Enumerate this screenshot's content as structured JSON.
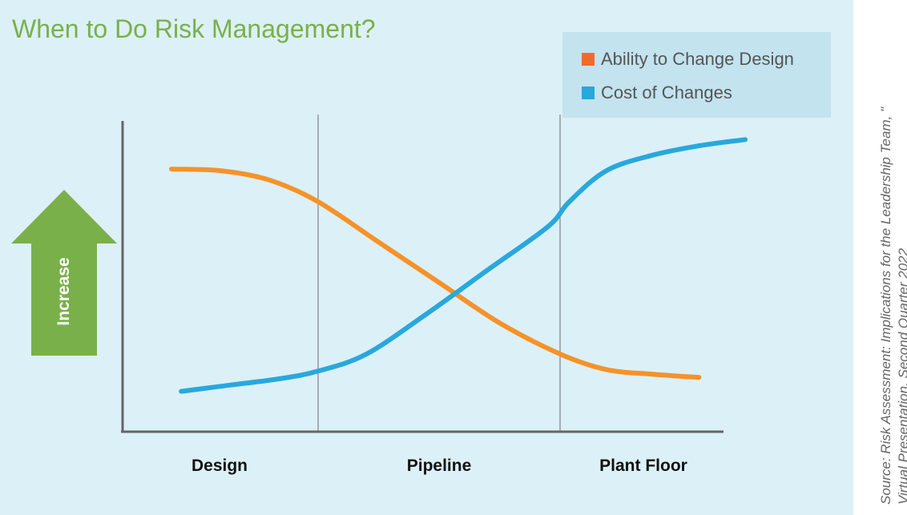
{
  "colors": {
    "background": "#dcf0f8",
    "legend_background": "#c3e3ef",
    "title": "#7ab04a",
    "arrow": "#7ab04a",
    "axis": "#666666",
    "ability": "#f5922a",
    "cost": "#28a8dc",
    "legend_swatch_ability": "#f26a2a",
    "legend_swatch_cost": "#28a8dc"
  },
  "title": "When to Do Risk Management?",
  "source": "Source:  Risk Assessment: Implications for the Leadership Team, \" Virtual Presentation, Second Quarter 2022",
  "arrow": {
    "label": "Increase",
    "icon": "up-arrow-icon"
  },
  "chart_data": {
    "type": "line",
    "title": "When to Do Risk Management?",
    "xlabel": "",
    "ylabel": "Increase",
    "categories": [
      "Design",
      "Pipeline",
      "Plant Floor"
    ],
    "xlim": [
      0,
      3
    ],
    "ylim": [
      0,
      100
    ],
    "grid": false,
    "phase_boundaries": [
      1,
      2
    ],
    "legend_position": "top-right",
    "series": [
      {
        "name": "Ability to Change Design",
        "color": "#f5922a",
        "x": [
          0.25,
          0.5,
          0.75,
          1.0,
          1.25,
          1.5,
          1.75,
          2.0,
          2.25,
          2.5,
          2.75
        ],
        "y": [
          84.5,
          84,
          81,
          74,
          61,
          48,
          35,
          25,
          20,
          18.5,
          17.5
        ]
      },
      {
        "name": "Cost of Changes",
        "color": "#28a8dc",
        "x": [
          0.3,
          0.55,
          0.8,
          1.0,
          1.2,
          1.45,
          1.7,
          1.95,
          2.05,
          2.25,
          2.5,
          2.75,
          3.0
        ],
        "y": [
          13,
          15,
          17,
          19.5,
          25,
          38,
          52,
          66,
          74,
          84,
          89,
          92,
          94
        ]
      }
    ]
  }
}
